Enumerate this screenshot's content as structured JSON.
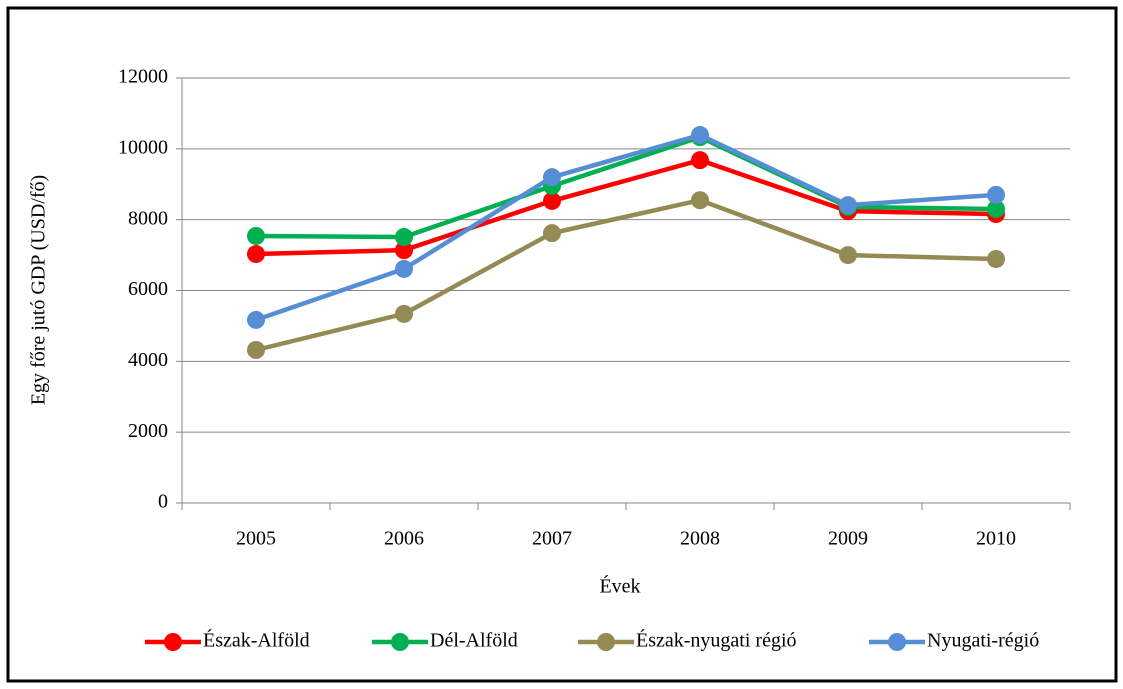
{
  "chart_data": {
    "type": "line",
    "y_axis_label": "Egy főre jutó GDP (USD/fő)",
    "x_axis_label": "Évek",
    "categories": [
      "2005",
      "2006",
      "2007",
      "2008",
      "2009",
      "2010"
    ],
    "series": [
      {
        "name": "Észak-Alföld",
        "color": "#ff0000",
        "values": [
          7030,
          7140,
          8530,
          9680,
          8240,
          8160
        ]
      },
      {
        "name": "Dél-Alföld",
        "color": "#00b050",
        "values": [
          7540,
          7510,
          8950,
          10330,
          8360,
          8300
        ]
      },
      {
        "name": "Észak-nyugati régió",
        "color": "#948a54",
        "values": [
          4320,
          5340,
          7620,
          8550,
          7000,
          6890
        ]
      },
      {
        "name": "Nyugati-régió",
        "color": "#558ed5",
        "values": [
          5170,
          6610,
          9200,
          10390,
          8410,
          8700
        ]
      }
    ],
    "ylim": [
      0,
      12000
    ],
    "yticks": [
      0,
      2000,
      4000,
      6000,
      8000,
      10000,
      12000
    ],
    "grid": true,
    "legend": "bottom"
  }
}
